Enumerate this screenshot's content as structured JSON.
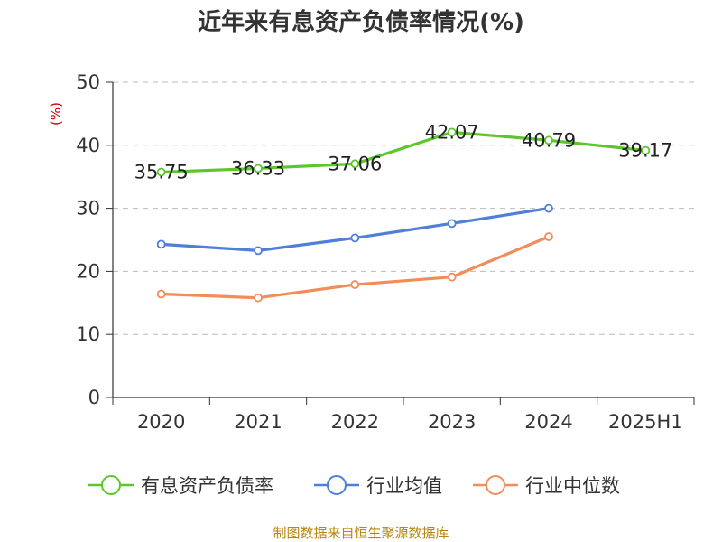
{
  "chart_data": {
    "type": "line",
    "title": "近年来有息资产负债率情况(%)",
    "y_unit_label": "(%)",
    "categories": [
      "2020",
      "2021",
      "2022",
      "2023",
      "2024",
      "2025H1"
    ],
    "ylim": [
      0,
      50
    ],
    "yticks": [
      0,
      10,
      20,
      30,
      40,
      50
    ],
    "grid": true,
    "legend_position": "bottom",
    "series": [
      {
        "name": "有息资产负债率",
        "color": "#5cc62c",
        "values": [
          35.75,
          36.33,
          37.06,
          42.07,
          40.79,
          39.17
        ],
        "labels": [
          "35.75",
          "36.33",
          "37.06",
          "42.07",
          "40.79",
          "39.17"
        ],
        "show_labels": true
      },
      {
        "name": "行业均值",
        "color": "#4f7fd9",
        "values": [
          24.3,
          23.3,
          25.3,
          27.6,
          30.0,
          null
        ],
        "show_labels": false
      },
      {
        "name": "行业中位数",
        "color": "#f28c5a",
        "values": [
          16.4,
          15.8,
          17.9,
          19.1,
          25.5,
          null
        ],
        "show_labels": false
      }
    ]
  },
  "source_note": "制图数据来自恒生聚源数据库"
}
